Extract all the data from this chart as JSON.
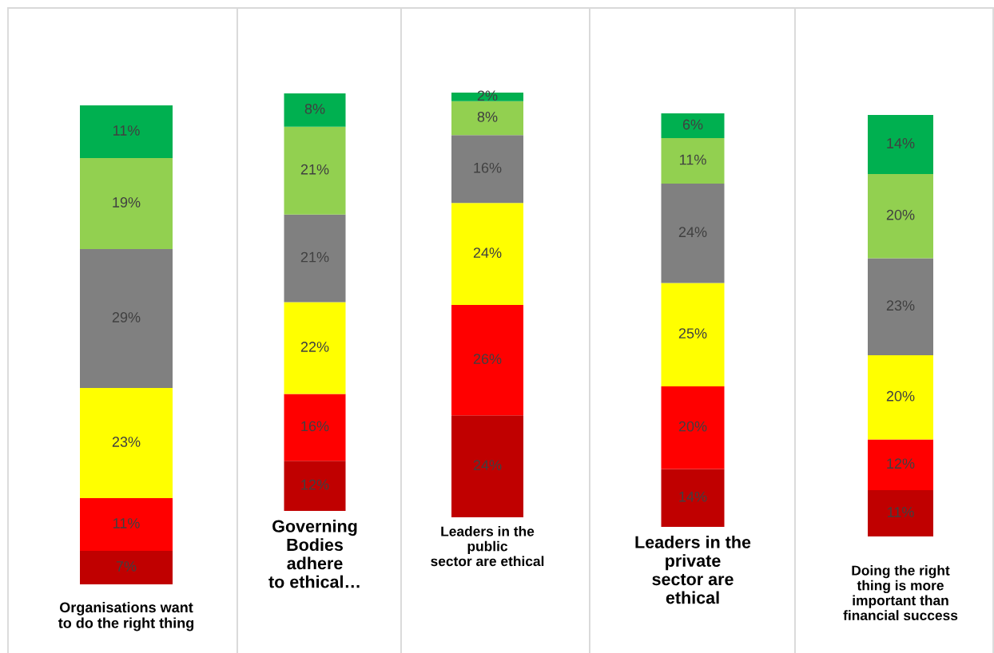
{
  "chart_data": [
    {
      "type": "bar",
      "stacked": true,
      "tick_labels": "x",
      "categories": [
        "Organisations want\nto do the right thing"
      ],
      "series": [
        {
          "color": "#c00000",
          "values": [
            7
          ],
          "value_labels": [
            "7%"
          ]
        },
        {
          "color": "#ff0000",
          "values": [
            11
          ],
          "value_labels": [
            "11%"
          ]
        },
        {
          "color": "#ffff00",
          "values": [
            23
          ],
          "value_labels": [
            "23%"
          ]
        },
        {
          "color": "#808080",
          "values": [
            29
          ],
          "value_labels": [
            "29%"
          ]
        },
        {
          "color": "#92d050",
          "values": [
            19
          ],
          "value_labels": [
            "19%"
          ]
        },
        {
          "color": "#00b050",
          "values": [
            11
          ],
          "value_labels": [
            "11%"
          ]
        }
      ]
    },
    {
      "type": "bar",
      "stacked": true,
      "tick_labels": "x",
      "categories": [
        "Governing\nBodies\nadhere\nto ethical…"
      ],
      "series": [
        {
          "color": "#c00000",
          "values": [
            12
          ],
          "value_labels": [
            "12%"
          ]
        },
        {
          "color": "#ff0000",
          "values": [
            16
          ],
          "value_labels": [
            "16%"
          ]
        },
        {
          "color": "#ffff00",
          "values": [
            22
          ],
          "value_labels": [
            "22%"
          ]
        },
        {
          "color": "#808080",
          "values": [
            21
          ],
          "value_labels": [
            "21%"
          ]
        },
        {
          "color": "#92d050",
          "values": [
            21
          ],
          "value_labels": [
            "21%"
          ]
        },
        {
          "color": "#00b050",
          "values": [
            8
          ],
          "value_labels": [
            "8%"
          ]
        }
      ]
    },
    {
      "type": "bar",
      "stacked": true,
      "tick_labels": "x",
      "categories": [
        "Leaders in the\npublic\nsector are ethical"
      ],
      "series": [
        {
          "color": "#c00000",
          "values": [
            24
          ],
          "value_labels": [
            "24%"
          ]
        },
        {
          "color": "#ff0000",
          "values": [
            26
          ],
          "value_labels": [
            "26%"
          ]
        },
        {
          "color": "#ffff00",
          "values": [
            24
          ],
          "value_labels": [
            "24%"
          ]
        },
        {
          "color": "#808080",
          "values": [
            16
          ],
          "value_labels": [
            "16%"
          ]
        },
        {
          "color": "#92d050",
          "values": [
            8
          ],
          "value_labels": [
            "8%"
          ]
        },
        {
          "color": "#00b050",
          "values": [
            2
          ],
          "value_labels": [
            "2%"
          ]
        }
      ]
    },
    {
      "type": "bar",
      "stacked": true,
      "tick_labels": "x",
      "categories": [
        "Leaders in the\nprivate\nsector are\nethical"
      ],
      "series": [
        {
          "color": "#c00000",
          "values": [
            14
          ],
          "value_labels": [
            "14%"
          ]
        },
        {
          "color": "#ff0000",
          "values": [
            20
          ],
          "value_labels": [
            "20%"
          ]
        },
        {
          "color": "#ffff00",
          "values": [
            25
          ],
          "value_labels": [
            "25%"
          ]
        },
        {
          "color": "#808080",
          "values": [
            24
          ],
          "value_labels": [
            "24%"
          ]
        },
        {
          "color": "#92d050",
          "values": [
            11
          ],
          "value_labels": [
            "11%"
          ]
        },
        {
          "color": "#00b050",
          "values": [
            6
          ],
          "value_labels": [
            "6%"
          ]
        }
      ]
    },
    {
      "type": "bar",
      "stacked": true,
      "tick_labels": "x",
      "categories": [
        "Doing the right\nthing is more\nimportant than\nfinancial success"
      ],
      "series": [
        {
          "color": "#c00000",
          "values": [
            11
          ],
          "value_labels": [
            "11%"
          ]
        },
        {
          "color": "#ff0000",
          "values": [
            12
          ],
          "value_labels": [
            "12%"
          ]
        },
        {
          "color": "#ffff00",
          "values": [
            20
          ],
          "value_labels": [
            "20%"
          ]
        },
        {
          "color": "#808080",
          "values": [
            23
          ],
          "value_labels": [
            "23%"
          ]
        },
        {
          "color": "#92d050",
          "values": [
            20
          ],
          "value_labels": [
            "20%"
          ]
        },
        {
          "color": "#00b050",
          "values": [
            14
          ],
          "value_labels": [
            "14%"
          ]
        }
      ]
    }
  ]
}
